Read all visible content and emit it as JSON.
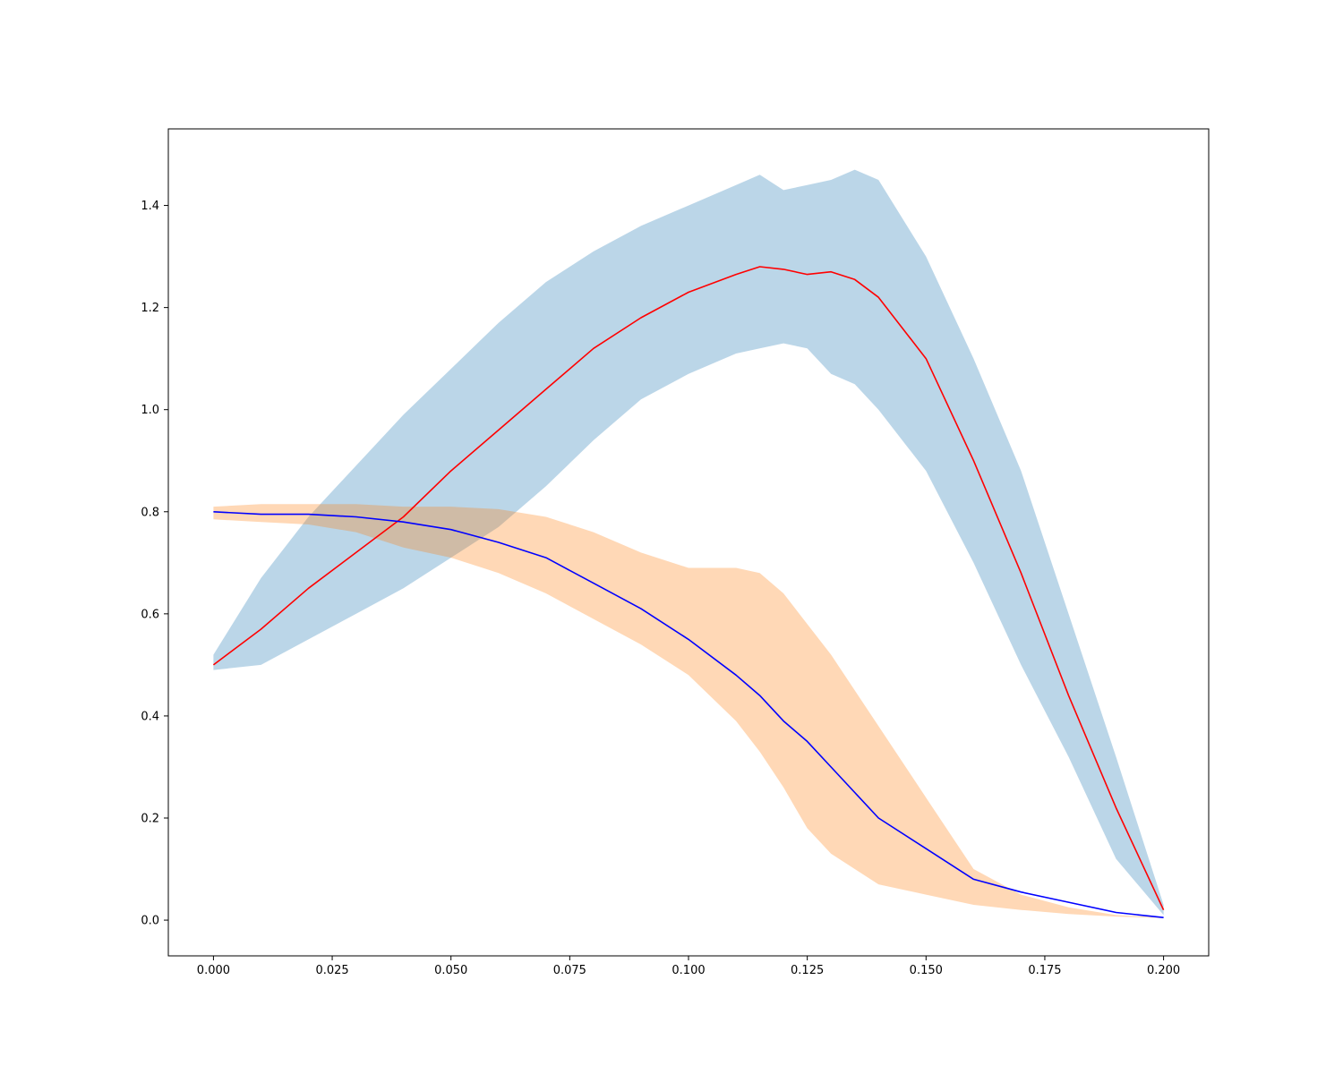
{
  "chart_data": {
    "type": "line",
    "title": "",
    "xlabel": "",
    "ylabel": "",
    "xlim": [
      -0.0095,
      0.2095
    ],
    "ylim": [
      -0.07,
      1.55
    ],
    "grid": false,
    "legend": "none",
    "x_ticks": [
      0.0,
      0.025,
      0.05,
      0.075,
      0.1,
      0.125,
      0.15,
      0.175,
      0.2
    ],
    "x_tick_labels": [
      "0.000",
      "0.025",
      "0.050",
      "0.075",
      "0.100",
      "0.125",
      "0.150",
      "0.175",
      "0.200"
    ],
    "y_ticks": [
      0.0,
      0.2,
      0.4,
      0.6,
      0.8,
      1.0,
      1.2,
      1.4
    ],
    "y_tick_labels": [
      "0.0",
      "0.2",
      "0.4",
      "0.6",
      "0.8",
      "1.0",
      "1.2",
      "1.4"
    ],
    "x": [
      0.0,
      0.01,
      0.02,
      0.03,
      0.04,
      0.05,
      0.06,
      0.07,
      0.08,
      0.09,
      0.1,
      0.11,
      0.115,
      0.12,
      0.125,
      0.13,
      0.135,
      0.14,
      0.15,
      0.16,
      0.17,
      0.18,
      0.19,
      0.2
    ],
    "series": [
      {
        "color": "#ff0000",
        "band_color": "#1f77b4",
        "band_opacity": 0.3,
        "values": [
          0.5,
          0.57,
          0.65,
          0.72,
          0.79,
          0.88,
          0.96,
          1.04,
          1.12,
          1.18,
          1.23,
          1.265,
          1.28,
          1.275,
          1.265,
          1.27,
          1.255,
          1.22,
          1.1,
          0.9,
          0.68,
          0.44,
          0.22,
          0.02
        ],
        "band_upper": [
          0.52,
          0.67,
          0.79,
          0.89,
          0.99,
          1.08,
          1.17,
          1.25,
          1.31,
          1.36,
          1.4,
          1.44,
          1.46,
          1.43,
          1.44,
          1.45,
          1.47,
          1.45,
          1.3,
          1.1,
          0.88,
          0.6,
          0.32,
          0.03
        ],
        "band_lower": [
          0.49,
          0.5,
          0.55,
          0.6,
          0.65,
          0.71,
          0.77,
          0.85,
          0.94,
          1.02,
          1.07,
          1.11,
          1.12,
          1.13,
          1.12,
          1.07,
          1.05,
          1.0,
          0.88,
          0.7,
          0.5,
          0.32,
          0.12,
          0.01
        ]
      },
      {
        "color": "#0000ff",
        "band_color": "#ff7f0e",
        "band_opacity": 0.3,
        "values": [
          0.8,
          0.795,
          0.795,
          0.79,
          0.78,
          0.765,
          0.74,
          0.71,
          0.66,
          0.61,
          0.55,
          0.48,
          0.44,
          0.39,
          0.35,
          0.3,
          0.25,
          0.2,
          0.14,
          0.08,
          0.055,
          0.035,
          0.015,
          0.005
        ],
        "band_upper": [
          0.81,
          0.815,
          0.815,
          0.815,
          0.81,
          0.81,
          0.805,
          0.79,
          0.76,
          0.72,
          0.69,
          0.69,
          0.68,
          0.64,
          0.58,
          0.52,
          0.45,
          0.38,
          0.24,
          0.1,
          0.05,
          0.025,
          0.01,
          0.005
        ],
        "band_lower": [
          0.785,
          0.78,
          0.775,
          0.76,
          0.73,
          0.71,
          0.68,
          0.64,
          0.59,
          0.54,
          0.48,
          0.39,
          0.33,
          0.26,
          0.18,
          0.13,
          0.1,
          0.07,
          0.05,
          0.03,
          0.02,
          0.012,
          0.007,
          0.004
        ]
      }
    ]
  }
}
